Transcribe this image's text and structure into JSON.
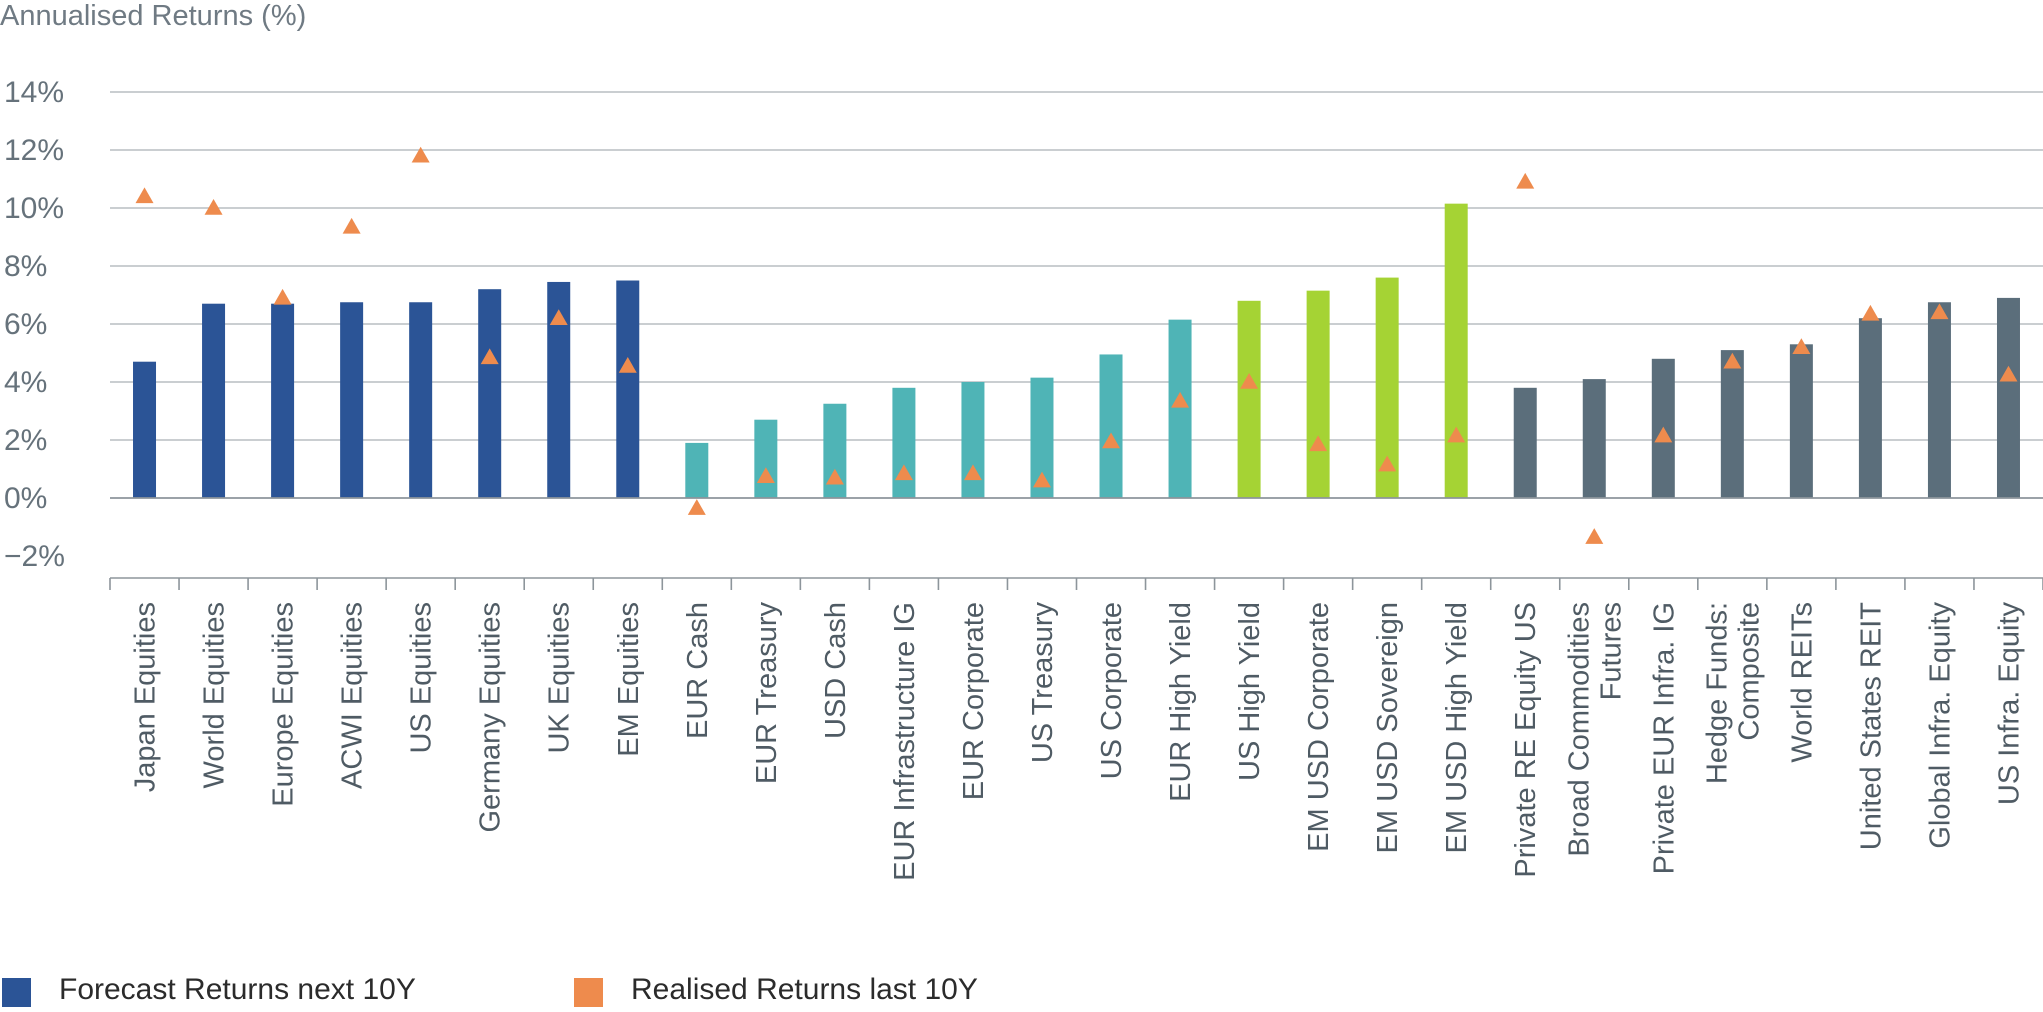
{
  "chart_data": {
    "type": "bar",
    "ylabel": "Annualised Returns (%)",
    "ylim": [
      -2,
      14
    ],
    "yticks": [
      -2,
      0,
      2,
      4,
      6,
      8,
      10,
      12,
      14
    ],
    "ytick_labels": [
      "−2%",
      "0%",
      "2%",
      "4%",
      "6%",
      "8%",
      "10%",
      "12%",
      "14%"
    ],
    "grid": true,
    "legend_position": "bottom-left",
    "categories": [
      "Japan Equities",
      "World Equities",
      "Europe Equities",
      "ACWI Equities",
      "US Equities",
      "Germany Equities",
      "UK Equities",
      "EM Equities",
      "EUR Cash",
      "EUR Treasury",
      "USD Cash",
      "EUR Infrastructure IG",
      "EUR Corporate",
      "US Treasury",
      "US Corporate",
      "EUR High Yield",
      "US High Yield",
      "EM USD Corporate",
      "EM USD Sovereign",
      "EM USD High Yield",
      "Private RE Equity US",
      "Broad Commodities\nFutures",
      "Private EUR Infra. IG",
      "Hedge Funds:\nComposite",
      "World REITs",
      "United States REIT",
      "Global Infra. Equity",
      "US Infra. Equity"
    ],
    "series": [
      {
        "name": "Forecast Returns next 10Y",
        "marker": "bar",
        "values": [
          4.7,
          6.7,
          6.7,
          6.75,
          6.75,
          7.2,
          7.45,
          7.5,
          1.9,
          2.7,
          3.25,
          3.8,
          4.0,
          4.15,
          4.95,
          6.15,
          6.8,
          7.15,
          7.6,
          10.15,
          3.8,
          4.1,
          4.8,
          5.1,
          5.3,
          6.2,
          6.75,
          6.9
        ]
      },
      {
        "name": "Realised Returns last 10Y",
        "marker": "triangle",
        "values": [
          10.4,
          10.0,
          6.9,
          9.35,
          11.8,
          4.85,
          6.2,
          4.55,
          -0.35,
          0.75,
          0.7,
          0.85,
          0.85,
          0.6,
          1.95,
          3.35,
          4.0,
          1.85,
          1.15,
          2.15,
          10.9,
          -1.35,
          2.15,
          4.7,
          5.2,
          6.35,
          6.4,
          4.25
        ]
      }
    ],
    "bar_group_colors": [
      "#2b5496",
      "#2b5496",
      "#2b5496",
      "#2b5496",
      "#2b5496",
      "#2b5496",
      "#2b5496",
      "#2b5496",
      "#4fb4b6",
      "#4fb4b6",
      "#4fb4b6",
      "#4fb4b6",
      "#4fb4b6",
      "#4fb4b6",
      "#4fb4b6",
      "#4fb4b6",
      "#a5d334",
      "#a5d334",
      "#a5d334",
      "#a5d334",
      "#5b6e7b",
      "#5b6e7b",
      "#5b6e7b",
      "#5b6e7b",
      "#5b6e7b",
      "#5b6e7b",
      "#5b6e7b",
      "#5b6e7b"
    ],
    "marker_color": "#ee8b4d",
    "legend_swatch_colors": [
      "#2b5496",
      "#ee8b4d"
    ]
  }
}
